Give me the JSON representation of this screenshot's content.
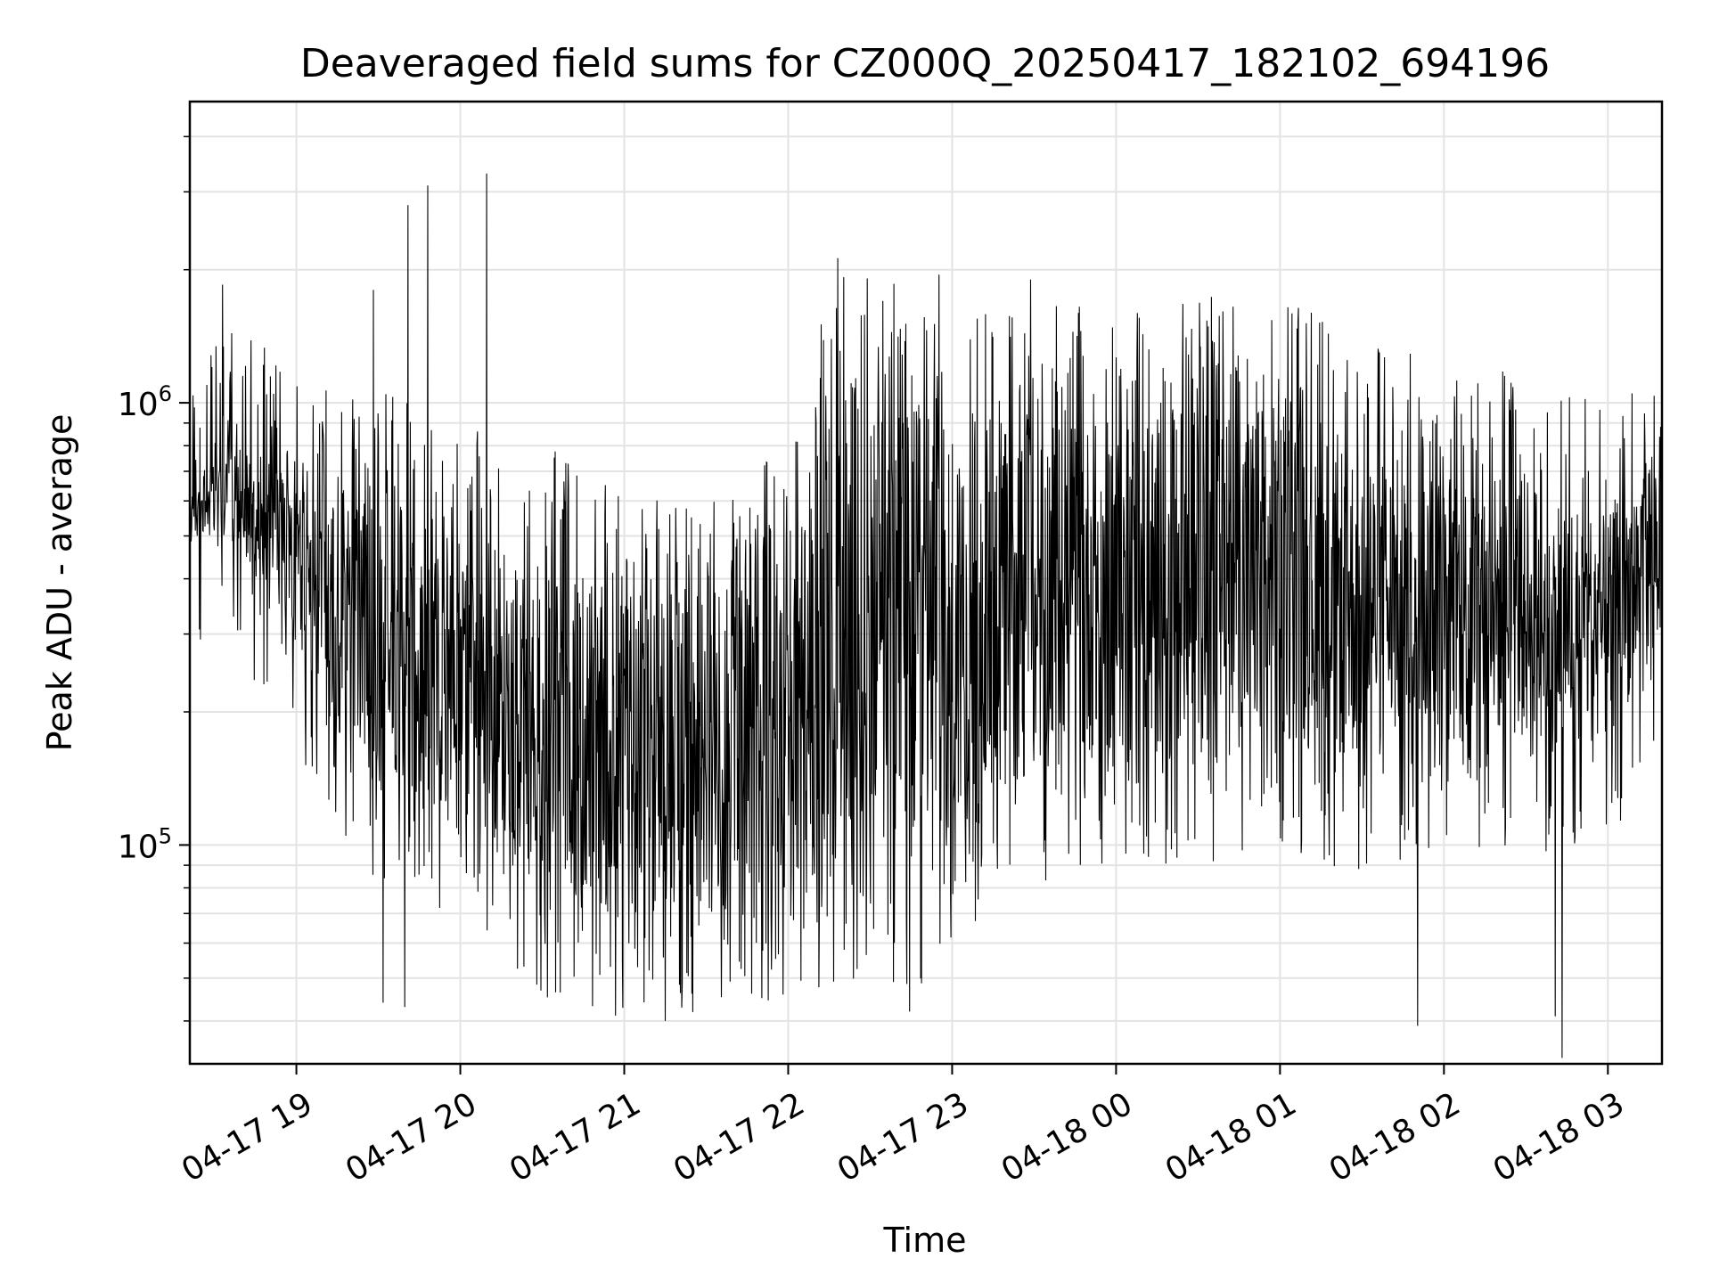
{
  "chart_data": {
    "type": "line",
    "title": "Deaveraged field sums for CZ000Q_20250417_182102_694196",
    "xlabel": "Time",
    "ylabel": "Peak ADU - average",
    "yscale": "log",
    "ylim": [
      32000,
      4800000
    ],
    "xlim_hours": [
      18.35,
      27.33
    ],
    "x_ticks": [
      {
        "label": "04-17 19",
        "hour": 19
      },
      {
        "label": "04-17 20",
        "hour": 20
      },
      {
        "label": "04-17 21",
        "hour": 21
      },
      {
        "label": "04-17 22",
        "hour": 22
      },
      {
        "label": "04-17 23",
        "hour": 23
      },
      {
        "label": "04-18 00",
        "hour": 24
      },
      {
        "label": "04-18 01",
        "hour": 25
      },
      {
        "label": "04-18 02",
        "hour": 26
      },
      {
        "label": "04-18 03",
        "hour": 27
      }
    ],
    "y_ticks": [
      {
        "base": "10",
        "exp": "5",
        "value": 100000
      },
      {
        "base": "10",
        "exp": "6",
        "value": 1000000
      }
    ],
    "grid": true,
    "line_color": "#000000",
    "envelope": {
      "hours": [
        18.35,
        18.6,
        18.9,
        19.2,
        19.6,
        20.0,
        20.5,
        21.0,
        21.5,
        22.0,
        22.3,
        22.8,
        23.2,
        23.6,
        24.0,
        24.5,
        25.0,
        25.5,
        26.0,
        26.5,
        27.0,
        27.33
      ],
      "low": [
        500000,
        500000,
        320000,
        190000,
        130000,
        120000,
        80000,
        70000,
        75000,
        80000,
        85000,
        85000,
        120000,
        150000,
        160000,
        160000,
        170000,
        150000,
        180000,
        170000,
        170000,
        300000
      ],
      "high": [
        600000,
        900000,
        700000,
        600000,
        600000,
        500000,
        450000,
        380000,
        380000,
        450000,
        1200000,
        1000000,
        900000,
        950000,
        900000,
        1000000,
        1000000,
        800000,
        700000,
        700000,
        550000,
        900000
      ]
    },
    "spikes": [
      {
        "hour": 18.55,
        "value": 1850000
      },
      {
        "hour": 19.47,
        "value": 1800000
      },
      {
        "hour": 19.68,
        "value": 2800000
      },
      {
        "hour": 19.8,
        "value": 3100000
      },
      {
        "hour": 20.16,
        "value": 3300000
      },
      {
        "hour": 22.92,
        "value": 1950000
      },
      {
        "hour": 23.48,
        "value": 1900000
      }
    ],
    "dips": [
      {
        "hour": 19.53,
        "value": 44000
      },
      {
        "hour": 19.66,
        "value": 43000
      },
      {
        "hour": 21.25,
        "value": 40000
      },
      {
        "hour": 22.74,
        "value": 42000
      },
      {
        "hour": 25.84,
        "value": 39000
      },
      {
        "hour": 26.72,
        "value": 33000
      },
      {
        "hour": 26.68,
        "value": 41000
      }
    ]
  }
}
